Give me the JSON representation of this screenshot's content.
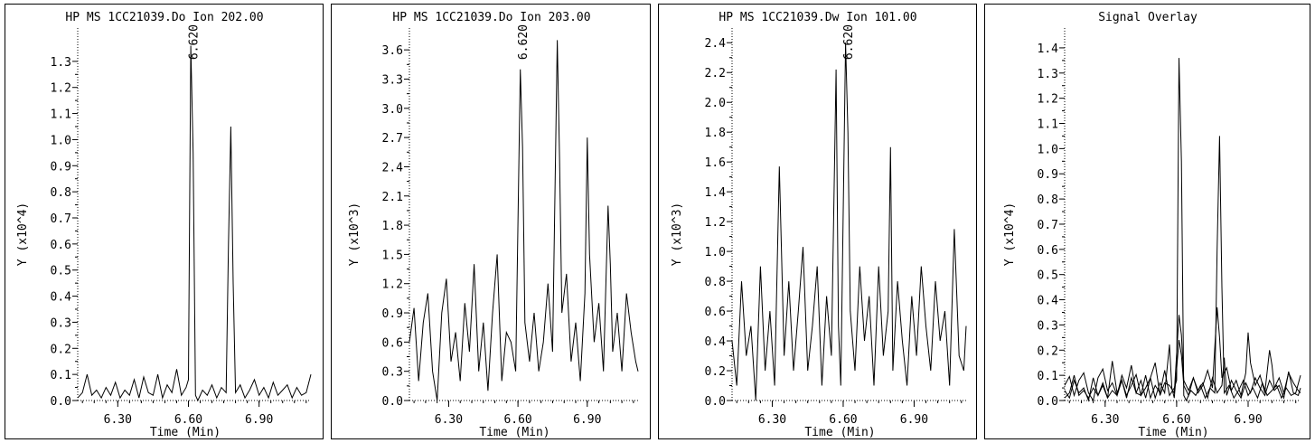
{
  "chart_data": [
    {
      "type": "line",
      "title": "HP MS 1CC21039.Do Ion 202.00",
      "ylabel": "Y (x10^4)",
      "xlabel": "Time (Min)",
      "xlim": [
        6.13,
        7.12
      ],
      "ylim": [
        0,
        1.4
      ],
      "xticks": [
        6.3,
        6.6,
        6.9
      ],
      "xtick_labels": [
        "6.30",
        "6.60",
        "6.90"
      ],
      "yticks": [
        0,
        0.1,
        0.2,
        0.3,
        0.4,
        0.5,
        0.6,
        0.7,
        0.8,
        0.9,
        1.0,
        1.1,
        1.2,
        1.3
      ],
      "ytick_labels": [
        "0.0",
        "0.1",
        "0.2",
        "0.3",
        "0.4",
        "0.5",
        "0.6",
        "0.7",
        "0.8",
        "0.9",
        "1.0",
        "1.1",
        "1.2",
        "1.3"
      ],
      "peak_annotations": [
        {
          "x": 6.62,
          "label": "6.620"
        }
      ],
      "series": [
        {
          "x": [
            6.13,
            6.15,
            6.17,
            6.19,
            6.21,
            6.23,
            6.25,
            6.27,
            6.29,
            6.31,
            6.33,
            6.35,
            6.37,
            6.39,
            6.41,
            6.43,
            6.45,
            6.47,
            6.49,
            6.51,
            6.53,
            6.55,
            6.57,
            6.59,
            6.6,
            6.61,
            6.62,
            6.63,
            6.64,
            6.66,
            6.68,
            6.7,
            6.72,
            6.74,
            6.76,
            6.77,
            6.78,
            6.79,
            6.8,
            6.82,
            6.84,
            6.86,
            6.88,
            6.9,
            6.92,
            6.94,
            6.96,
            6.98,
            7.0,
            7.02,
            7.04,
            7.06,
            7.08,
            7.1,
            7.12
          ],
          "y": [
            0.01,
            0.03,
            0.1,
            0.02,
            0.04,
            0.01,
            0.05,
            0.02,
            0.07,
            0.01,
            0.04,
            0.02,
            0.08,
            0.01,
            0.09,
            0.03,
            0.02,
            0.1,
            0.01,
            0.06,
            0.03,
            0.12,
            0.02,
            0.05,
            0.08,
            1.36,
            0.95,
            0.02,
            0.0,
            0.04,
            0.02,
            0.06,
            0.01,
            0.05,
            0.03,
            0.6,
            1.05,
            0.45,
            0.03,
            0.06,
            0.01,
            0.04,
            0.08,
            0.02,
            0.05,
            0.01,
            0.07,
            0.02,
            0.04,
            0.06,
            0.01,
            0.05,
            0.02,
            0.03,
            0.1
          ]
        }
      ]
    },
    {
      "type": "line",
      "title": "HP MS 1CC21039.Do Ion 203.00",
      "ylabel": "Y (x10^3)",
      "xlabel": "Time (Min)",
      "xlim": [
        6.13,
        7.12
      ],
      "ylim": [
        0,
        3.75
      ],
      "xticks": [
        6.3,
        6.6,
        6.9
      ],
      "xtick_labels": [
        "6.30",
        "6.60",
        "6.90"
      ],
      "yticks": [
        0,
        0.3,
        0.6,
        0.9,
        1.2,
        1.5,
        1.8,
        2.1,
        2.4,
        2.7,
        3.0,
        3.3,
        3.6
      ],
      "ytick_labels": [
        "0.0",
        "0.3",
        "0.6",
        "0.9",
        "1.2",
        "1.5",
        "1.8",
        "2.1",
        "2.4",
        "2.7",
        "3.0",
        "3.3",
        "3.6"
      ],
      "peak_annotations": [
        {
          "x": 6.62,
          "label": "6.620"
        }
      ],
      "series": [
        {
          "x": [
            6.13,
            6.15,
            6.17,
            6.19,
            6.21,
            6.23,
            6.25,
            6.27,
            6.29,
            6.31,
            6.33,
            6.35,
            6.37,
            6.39,
            6.41,
            6.43,
            6.45,
            6.47,
            6.49,
            6.51,
            6.53,
            6.55,
            6.57,
            6.59,
            6.61,
            6.62,
            6.63,
            6.65,
            6.67,
            6.69,
            6.71,
            6.73,
            6.75,
            6.77,
            6.78,
            6.79,
            6.81,
            6.83,
            6.85,
            6.87,
            6.89,
            6.9,
            6.91,
            6.93,
            6.95,
            6.97,
            6.99,
            7.0,
            7.01,
            7.03,
            7.05,
            7.07,
            7.09,
            7.11,
            7.12
          ],
          "y": [
            0.6,
            0.95,
            0.2,
            0.8,
            1.1,
            0.3,
            0.0,
            0.9,
            1.25,
            0.4,
            0.7,
            0.2,
            1.0,
            0.5,
            1.4,
            0.3,
            0.8,
            0.1,
            0.9,
            1.5,
            0.2,
            0.7,
            0.6,
            0.3,
            3.4,
            2.6,
            0.8,
            0.4,
            0.9,
            0.3,
            0.6,
            1.2,
            0.5,
            3.7,
            2.5,
            0.9,
            1.3,
            0.4,
            0.8,
            0.2,
            1.1,
            2.7,
            1.5,
            0.6,
            1.0,
            0.3,
            2.0,
            1.4,
            0.5,
            0.9,
            0.3,
            1.1,
            0.7,
            0.4,
            0.3
          ]
        }
      ]
    },
    {
      "type": "line",
      "title": "HP MS 1CC21039.Dw Ion 101.00",
      "ylabel": "Y (x10^3)",
      "xlabel": "Time (Min)",
      "xlim": [
        6.13,
        7.12
      ],
      "ylim": [
        0,
        2.45
      ],
      "xticks": [
        6.3,
        6.6,
        6.9
      ],
      "xtick_labels": [
        "6.30",
        "6.60",
        "6.90"
      ],
      "yticks": [
        0,
        0.2,
        0.4,
        0.6,
        0.8,
        1.0,
        1.2,
        1.4,
        1.6,
        1.8,
        2.0,
        2.2,
        2.4
      ],
      "ytick_labels": [
        "0.0",
        "0.2",
        "0.4",
        "0.6",
        "0.8",
        "1.0",
        "1.2",
        "1.4",
        "1.6",
        "1.8",
        "2.0",
        "2.2",
        "2.4"
      ],
      "peak_annotations": [
        {
          "x": 6.62,
          "label": "6.620"
        }
      ],
      "series": [
        {
          "x": [
            6.13,
            6.15,
            6.17,
            6.19,
            6.21,
            6.23,
            6.25,
            6.27,
            6.29,
            6.31,
            6.33,
            6.35,
            6.37,
            6.39,
            6.41,
            6.43,
            6.45,
            6.47,
            6.49,
            6.51,
            6.53,
            6.55,
            6.57,
            6.58,
            6.59,
            6.61,
            6.62,
            6.63,
            6.65,
            6.67,
            6.69,
            6.71,
            6.73,
            6.75,
            6.77,
            6.79,
            6.8,
            6.81,
            6.83,
            6.85,
            6.87,
            6.89,
            6.91,
            6.93,
            6.95,
            6.97,
            6.99,
            7.01,
            7.03,
            7.05,
            7.07,
            7.09,
            7.11,
            7.12
          ],
          "y": [
            0.4,
            0.1,
            0.8,
            0.3,
            0.5,
            0.0,
            0.9,
            0.2,
            0.6,
            0.1,
            1.57,
            0.3,
            0.8,
            0.2,
            0.6,
            1.03,
            0.2,
            0.5,
            0.9,
            0.1,
            0.7,
            0.3,
            2.22,
            0.5,
            0.1,
            2.4,
            1.8,
            0.6,
            0.2,
            0.9,
            0.4,
            0.7,
            0.1,
            0.9,
            0.3,
            0.6,
            1.7,
            0.2,
            0.8,
            0.4,
            0.1,
            0.7,
            0.3,
            0.9,
            0.5,
            0.2,
            0.8,
            0.4,
            0.6,
            0.1,
            1.15,
            0.3,
            0.2,
            0.5
          ]
        }
      ]
    },
    {
      "type": "line",
      "title": "Signal Overlay",
      "ylabel": "Y (x10^4)",
      "xlabel": "Time (Min)",
      "xlim": [
        6.13,
        7.12
      ],
      "ylim": [
        0,
        1.45
      ],
      "xticks": [
        6.3,
        6.6,
        6.9
      ],
      "xtick_labels": [
        "6.30",
        "6.60",
        "6.90"
      ],
      "yticks": [
        0,
        0.1,
        0.2,
        0.3,
        0.4,
        0.5,
        0.6,
        0.7,
        0.8,
        0.9,
        1.0,
        1.1,
        1.2,
        1.3,
        1.4
      ],
      "ytick_labels": [
        "0.0",
        "0.1",
        "0.2",
        "0.3",
        "0.4",
        "0.5",
        "0.6",
        "0.7",
        "0.8",
        "0.9",
        "1.0",
        "1.1",
        "1.2",
        "1.3",
        "1.4"
      ],
      "peak_annotations": [],
      "series": [
        {
          "x": [
            6.13,
            6.15,
            6.17,
            6.19,
            6.21,
            6.23,
            6.25,
            6.27,
            6.29,
            6.31,
            6.33,
            6.35,
            6.37,
            6.39,
            6.41,
            6.43,
            6.45,
            6.47,
            6.49,
            6.51,
            6.53,
            6.55,
            6.57,
            6.59,
            6.6,
            6.61,
            6.62,
            6.63,
            6.64,
            6.66,
            6.68,
            6.7,
            6.72,
            6.74,
            6.76,
            6.77,
            6.78,
            6.79,
            6.8,
            6.82,
            6.84,
            6.86,
            6.88,
            6.9,
            6.92,
            6.94,
            6.96,
            6.98,
            7.0,
            7.02,
            7.04,
            7.06,
            7.08,
            7.1,
            7.12
          ],
          "y": [
            0.01,
            0.03,
            0.1,
            0.02,
            0.04,
            0.01,
            0.05,
            0.02,
            0.07,
            0.01,
            0.04,
            0.02,
            0.08,
            0.01,
            0.09,
            0.03,
            0.02,
            0.1,
            0.01,
            0.06,
            0.03,
            0.12,
            0.02,
            0.05,
            0.08,
            1.36,
            0.95,
            0.02,
            0.0,
            0.04,
            0.02,
            0.06,
            0.01,
            0.05,
            0.03,
            0.6,
            1.05,
            0.45,
            0.03,
            0.06,
            0.01,
            0.04,
            0.08,
            0.02,
            0.05,
            0.01,
            0.07,
            0.02,
            0.04,
            0.06,
            0.01,
            0.05,
            0.02,
            0.03,
            0.1
          ]
        },
        {
          "x": [
            6.13,
            6.15,
            6.17,
            6.19,
            6.21,
            6.23,
            6.25,
            6.27,
            6.29,
            6.31,
            6.33,
            6.35,
            6.37,
            6.39,
            6.41,
            6.43,
            6.45,
            6.47,
            6.49,
            6.51,
            6.53,
            6.55,
            6.57,
            6.59,
            6.61,
            6.62,
            6.63,
            6.65,
            6.67,
            6.69,
            6.71,
            6.73,
            6.75,
            6.77,
            6.78,
            6.79,
            6.81,
            6.83,
            6.85,
            6.87,
            6.89,
            6.9,
            6.91,
            6.93,
            6.95,
            6.97,
            6.99,
            7.0,
            7.01,
            7.03,
            7.05,
            7.07,
            7.09,
            7.11,
            7.12
          ],
          "y": [
            0.06,
            0.095,
            0.02,
            0.08,
            0.11,
            0.03,
            0.0,
            0.09,
            0.125,
            0.04,
            0.07,
            0.02,
            0.1,
            0.05,
            0.14,
            0.03,
            0.08,
            0.01,
            0.09,
            0.15,
            0.02,
            0.07,
            0.06,
            0.03,
            0.34,
            0.26,
            0.08,
            0.04,
            0.09,
            0.03,
            0.06,
            0.12,
            0.05,
            0.37,
            0.25,
            0.09,
            0.13,
            0.04,
            0.08,
            0.02,
            0.11,
            0.27,
            0.15,
            0.06,
            0.1,
            0.03,
            0.2,
            0.14,
            0.05,
            0.09,
            0.03,
            0.11,
            0.07,
            0.04,
            0.03
          ]
        },
        {
          "x": [
            6.13,
            6.15,
            6.17,
            6.19,
            6.21,
            6.23,
            6.25,
            6.27,
            6.29,
            6.31,
            6.33,
            6.35,
            6.37,
            6.39,
            6.41,
            6.43,
            6.45,
            6.47,
            6.49,
            6.51,
            6.53,
            6.55,
            6.57,
            6.58,
            6.59,
            6.61,
            6.62,
            6.63,
            6.65,
            6.67,
            6.69,
            6.71,
            6.73,
            6.75,
            6.77,
            6.79,
            6.8,
            6.81,
            6.83,
            6.85,
            6.87,
            6.89,
            6.91,
            6.93,
            6.95,
            6.97,
            6.99,
            7.01,
            7.03,
            7.05,
            7.07,
            7.09,
            7.11,
            7.12
          ],
          "y": [
            0.04,
            0.01,
            0.08,
            0.03,
            0.05,
            0.0,
            0.09,
            0.02,
            0.06,
            0.01,
            0.157,
            0.03,
            0.08,
            0.02,
            0.06,
            0.103,
            0.02,
            0.05,
            0.09,
            0.01,
            0.07,
            0.03,
            0.222,
            0.05,
            0.01,
            0.24,
            0.18,
            0.06,
            0.02,
            0.09,
            0.04,
            0.07,
            0.01,
            0.09,
            0.03,
            0.06,
            0.17,
            0.02,
            0.08,
            0.04,
            0.01,
            0.07,
            0.03,
            0.09,
            0.05,
            0.02,
            0.08,
            0.04,
            0.06,
            0.01,
            0.115,
            0.03,
            0.02,
            0.05
          ]
        }
      ]
    }
  ]
}
